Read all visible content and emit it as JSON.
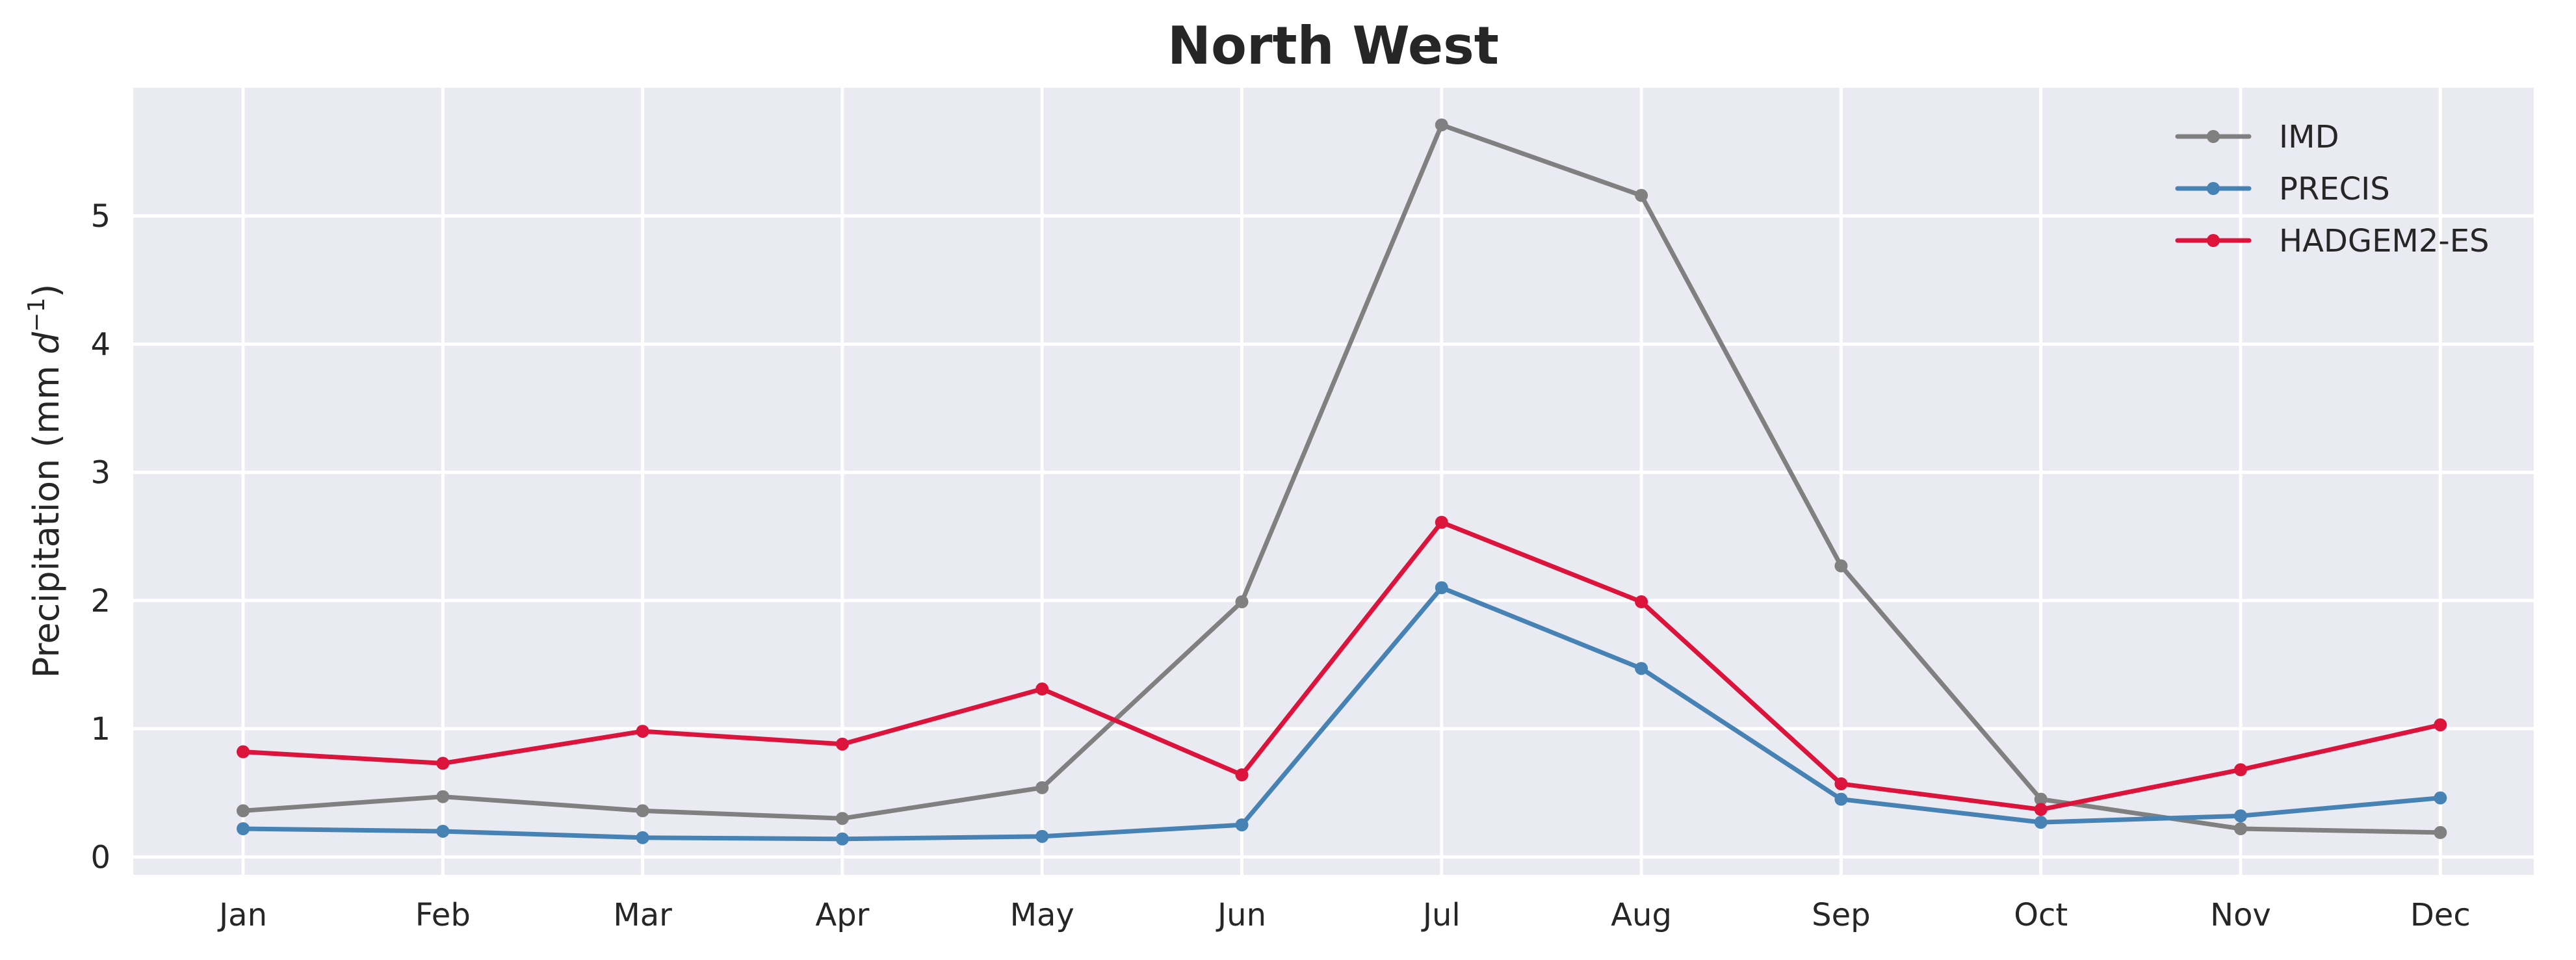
{
  "chart_data": {
    "type": "line",
    "title": "North West",
    "xlabel": "",
    "ylabel_prefix": "Precipitation (mm ",
    "ylabel_var": "d",
    "ylabel_exp": "−1",
    "ylabel_suffix": ")",
    "categories": [
      "Jan",
      "Feb",
      "Mar",
      "Apr",
      "May",
      "Jun",
      "Jul",
      "Aug",
      "Sep",
      "Oct",
      "Nov",
      "Dec"
    ],
    "ylim": [
      -0.14,
      6.0
    ],
    "yticks": [
      0,
      1,
      2,
      3,
      4,
      5
    ],
    "grid": true,
    "legend_position": "top-right",
    "series": [
      {
        "name": "IMD",
        "color": "#808080",
        "values": [
          0.36,
          0.47,
          0.36,
          0.3,
          0.54,
          1.99,
          5.71,
          5.16,
          2.27,
          0.45,
          0.22,
          0.19
        ]
      },
      {
        "name": "PRECIS",
        "color": "#4682b4",
        "values": [
          0.22,
          0.2,
          0.15,
          0.14,
          0.16,
          0.25,
          2.1,
          1.47,
          0.45,
          0.27,
          0.32,
          0.46
        ]
      },
      {
        "name": "HADGEM2-ES",
        "color": "#dc143c",
        "values": [
          0.82,
          0.73,
          0.98,
          0.88,
          1.31,
          0.64,
          2.61,
          1.99,
          0.57,
          0.37,
          0.68,
          1.03
        ]
      }
    ]
  }
}
